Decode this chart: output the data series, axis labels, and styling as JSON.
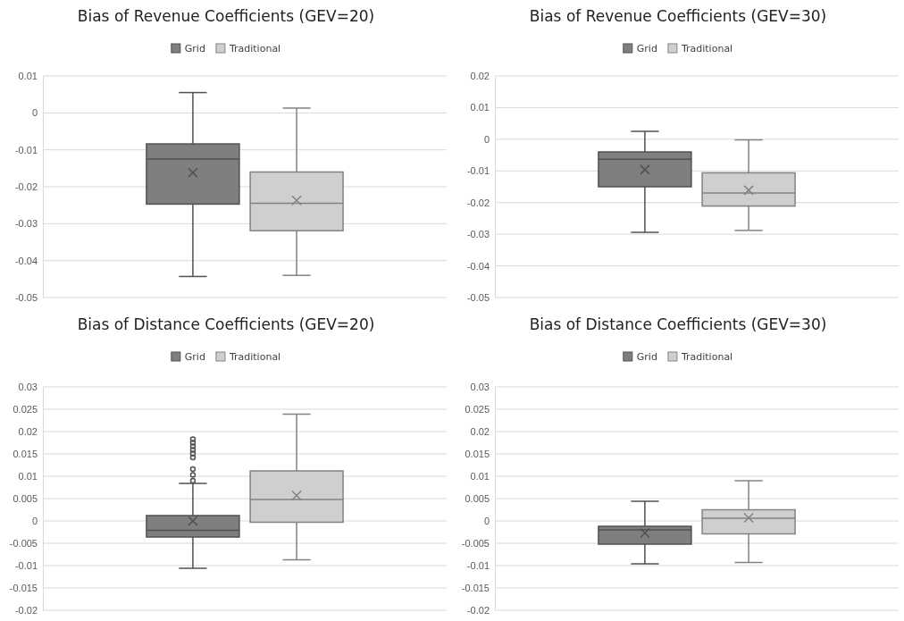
{
  "chart_data": [
    {
      "type": "box",
      "title": "Bias of Revenue Coefficients (GEV=20)",
      "categories": [
        null
      ],
      "legend": "top",
      "grid": "y",
      "ylim": [
        -0.05,
        0.01
      ],
      "yticks": [
        -0.05,
        -0.04,
        -0.03,
        -0.02,
        -0.01,
        0,
        0.01
      ],
      "series": [
        {
          "name": "Grid",
          "color": "#7f7f7f",
          "boxes": [
            {
              "low": -0.0443,
              "q1": -0.0247,
              "median": -0.0125,
              "q3": -0.0084,
              "high": 0.0055,
              "mean": -0.0162
            }
          ]
        },
        {
          "name": "Traditional",
          "color": "#d0cece",
          "boxes": [
            {
              "low": -0.044,
              "q1": -0.0319,
              "median": -0.0245,
              "q3": -0.016,
              "high": 0.0013,
              "mean": -0.0237
            }
          ]
        }
      ]
    },
    {
      "type": "box",
      "title": "Bias of Revenue Coefficients (GEV=30)",
      "categories": [
        null
      ],
      "legend": "top",
      "grid": "y",
      "ylim": [
        -0.05,
        0.02
      ],
      "yticks": [
        -0.05,
        -0.04,
        -0.03,
        -0.02,
        -0.01,
        0,
        0.01,
        0.02
      ],
      "series": [
        {
          "name": "Grid",
          "color": "#7f7f7f",
          "boxes": [
            {
              "low": -0.0294,
              "q1": -0.015,
              "median": -0.0063,
              "q3": -0.004,
              "high": 0.0025,
              "mean": -0.0096
            }
          ]
        },
        {
          "name": "Traditional",
          "color": "#d0cece",
          "boxes": [
            {
              "low": -0.0288,
              "q1": -0.0211,
              "median": -0.017,
              "q3": -0.0106,
              "high": -0.0002,
              "mean": -0.0161
            }
          ]
        }
      ]
    },
    {
      "type": "box",
      "title": "Bias of Distance Coefficients (GEV=20)",
      "categories": [
        null
      ],
      "legend": "top",
      "grid": "y",
      "ylim": [
        -0.02,
        0.03
      ],
      "yticks": [
        -0.02,
        -0.015,
        -0.01,
        -0.005,
        0,
        0.005,
        0.01,
        0.015,
        0.02,
        0.025,
        0.03
      ],
      "series": [
        {
          "name": "Grid",
          "color": "#7f7f7f",
          "boxes": [
            {
              "low": -0.0106,
              "q1": -0.0036,
              "median": -0.0021,
              "q3": 0.0012,
              "high": 0.0084,
              "mean": 0.0,
              "outliers": [
                0.009,
                0.0103,
                0.0116,
                0.0142,
                0.0151,
                0.0159,
                0.0167,
                0.0175,
                0.0183
              ]
            }
          ]
        },
        {
          "name": "Traditional",
          "color": "#d0cece",
          "boxes": [
            {
              "low": -0.0087,
              "q1": -0.0003,
              "median": 0.0048,
              "q3": 0.0112,
              "high": 0.0239,
              "mean": 0.0057
            }
          ]
        }
      ]
    },
    {
      "type": "box",
      "title": "Bias of Distance Coefficients (GEV=30)",
      "categories": [
        null
      ],
      "legend": "top",
      "grid": "y",
      "ylim": [
        -0.02,
        0.03
      ],
      "yticks": [
        -0.02,
        -0.015,
        -0.01,
        -0.005,
        0,
        0.005,
        0.01,
        0.015,
        0.02,
        0.025,
        0.03
      ],
      "series": [
        {
          "name": "Grid",
          "color": "#7f7f7f",
          "boxes": [
            {
              "low": -0.0096,
              "q1": -0.0052,
              "median": -0.002,
              "q3": -0.0012,
              "high": 0.0044,
              "mean": -0.0027
            }
          ]
        },
        {
          "name": "Traditional",
          "color": "#d0cece",
          "boxes": [
            {
              "low": -0.0093,
              "q1": -0.0029,
              "median": 0.0006,
              "q3": 0.0025,
              "high": 0.009,
              "mean": 0.0007
            }
          ]
        }
      ]
    }
  ]
}
